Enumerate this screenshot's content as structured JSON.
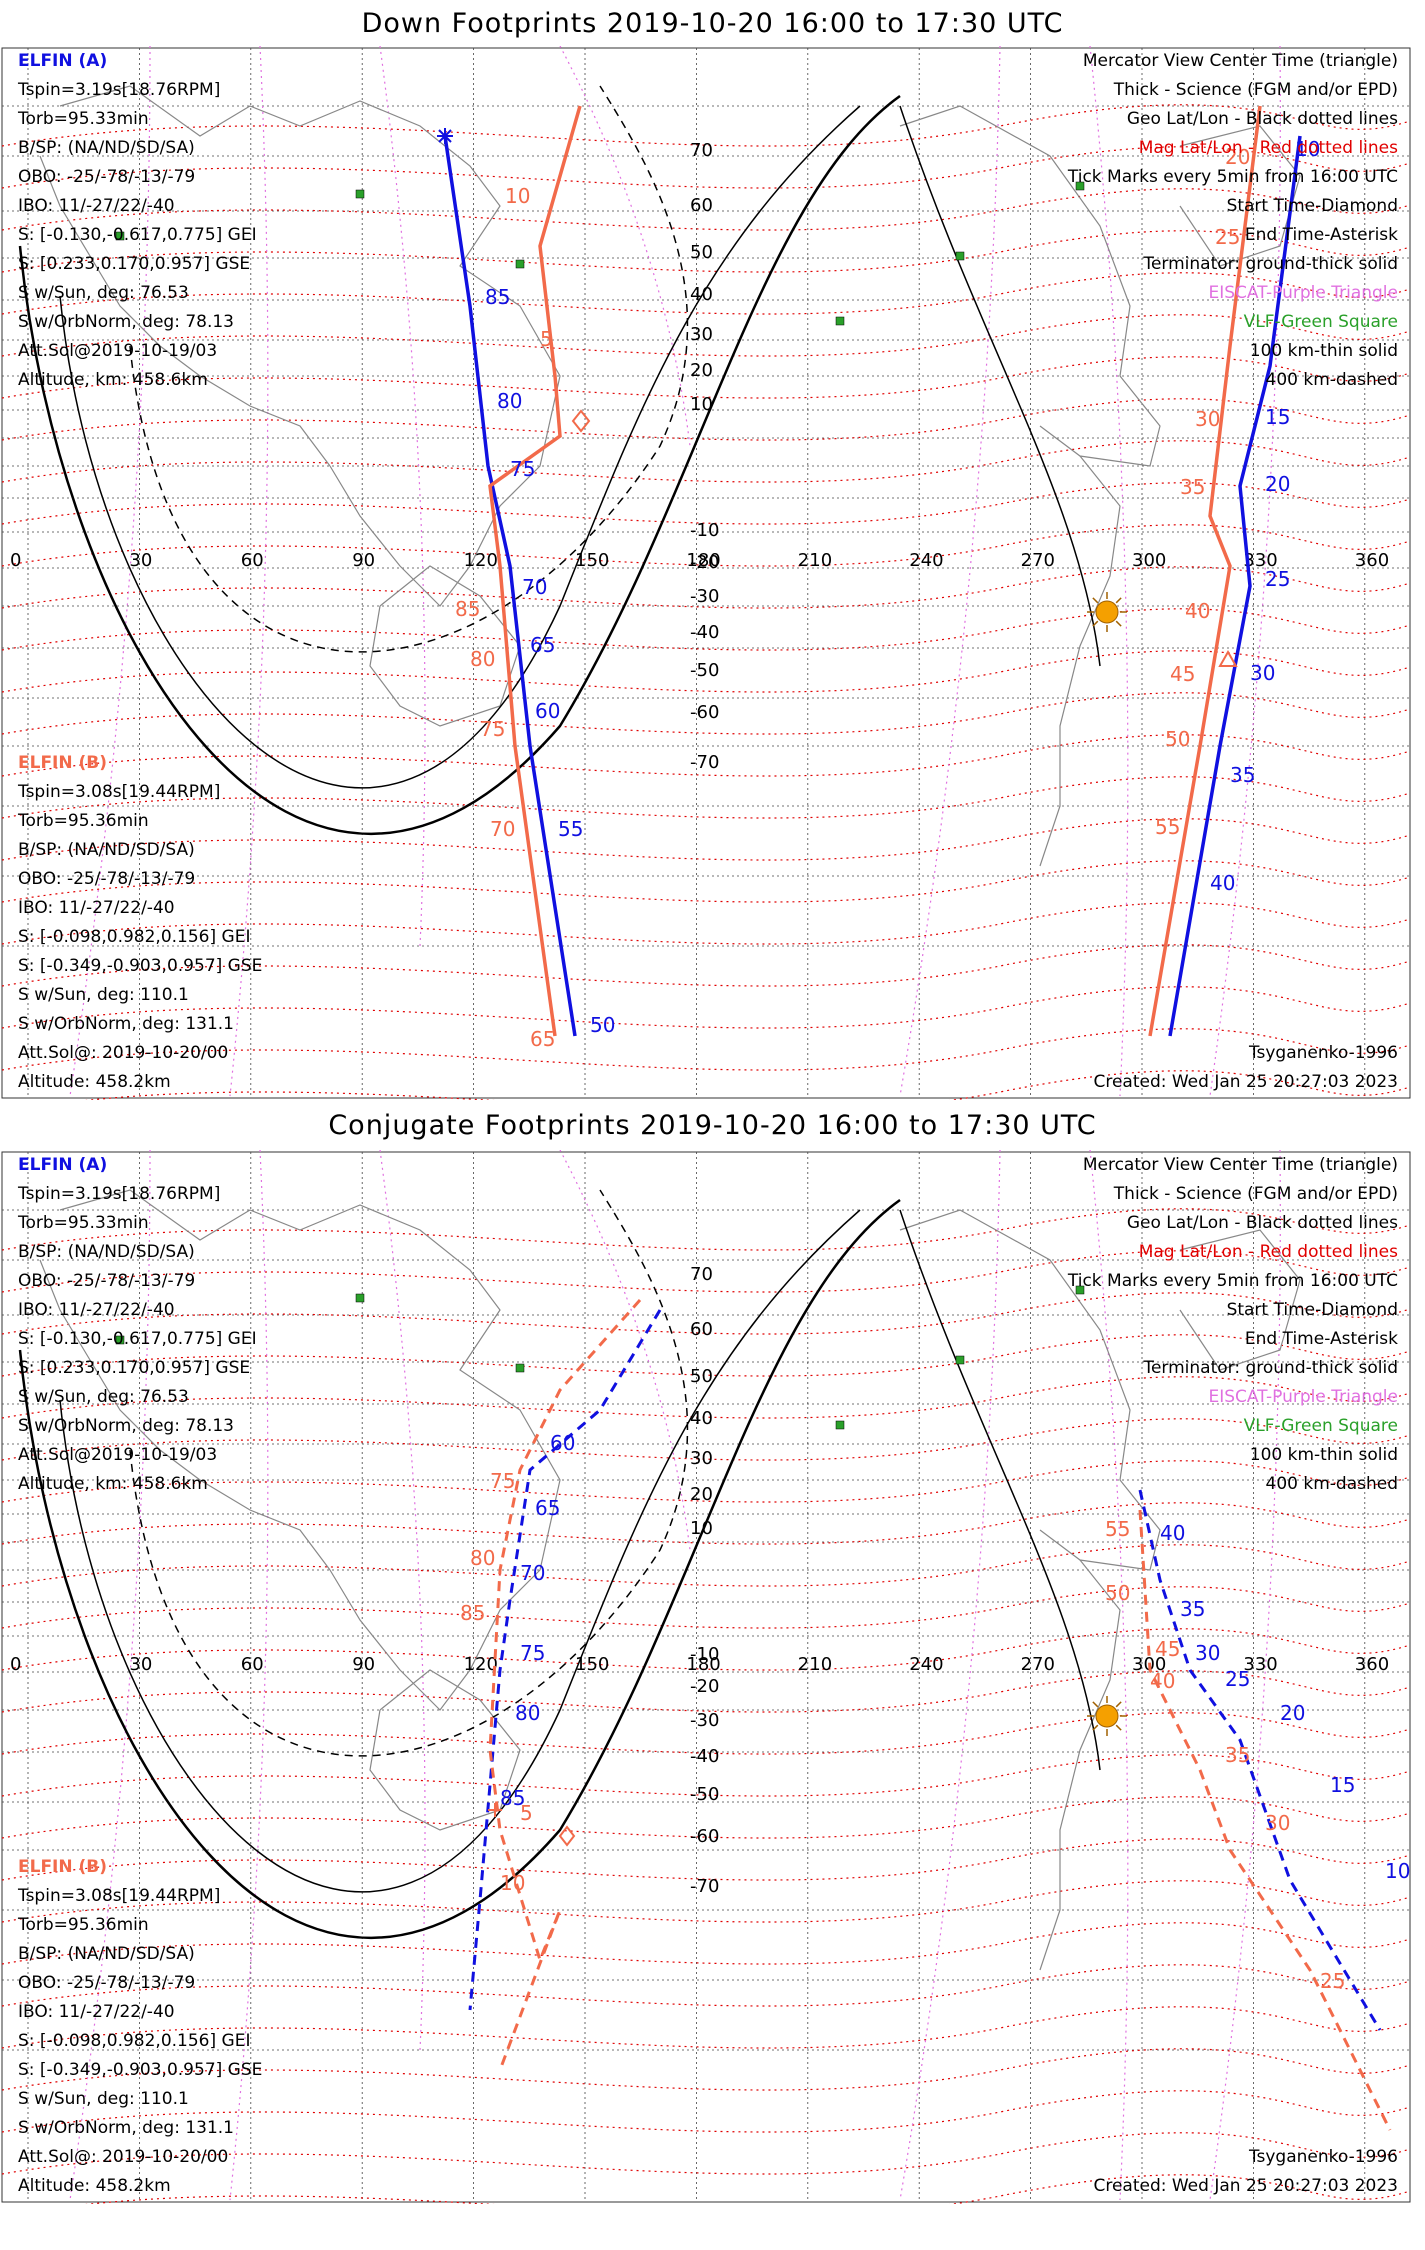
{
  "panels": [
    {
      "title": "Down Footprints 2019-10-20 16:00 to 17:30 UTC",
      "elfin_a": {
        "name": "ELFIN (A)",
        "lines": [
          "Tspin=3.19s[18.76RPM]",
          "Torb=95.33min",
          "B/SP: (NA/ND/SD/SA)",
          "OBO: -25/-78/-13/-79",
          "IBO: 11/-27/22/-40",
          "S: [-0.130,-0.617,0.775] GEI",
          "S: [0.233,0.170,0.957] GSE",
          "S w/Sun, deg: 76.53",
          "S w/OrbNorm, deg: 78.13",
          "Att.Sol@2019-10-19/03",
          "Altitude, km: 458.6km"
        ]
      },
      "elfin_b": {
        "name": "ELFIN (B)",
        "lines": [
          "Tspin=3.08s[19.44RPM]",
          "Torb=95.36min",
          "B/SP: (NA/ND/SD/SA)",
          "OBO: -25/-78/-13/-79",
          "IBO: 11/-27/22/-40",
          "S: [-0.098,0.982,0.156] GEI",
          "S: [-0.349,-0.903,0.957] GSE",
          "S w/Sun, deg: 110.1",
          "S w/OrbNorm, deg: 131.1",
          "Att.Sol@: 2019-10-20/00",
          "Altitude: 458.2km"
        ]
      },
      "legend": [
        "Mercator View Center Time (triangle)",
        "Thick - Science (FGM and/or EPD)",
        "Geo Lat/Lon - Black dotted lines",
        "Mag Lat/Lon - Red dotted lines",
        "Tick Marks every 5min from 16:00 UTC",
        "Start Time-Diamond",
        "End Time-Asterisk",
        "Terminator: ground-thick solid",
        "EISCAT-Purple Triangle",
        "VLF-Green Square",
        "100 km-thin solid",
        "400 km-dashed"
      ],
      "model": "Tsyganenko-1996",
      "created": "Created: Wed Jan 25 20:27:03 2023",
      "track_a_labels": [
        "85",
        "80",
        "75",
        "70",
        "65",
        "60",
        "55",
        "50",
        "10",
        "15",
        "20",
        "25",
        "30",
        "35",
        "40"
      ],
      "track_b_labels": [
        "10",
        "5",
        "85",
        "80",
        "75",
        "70",
        "65",
        "20",
        "25",
        "30",
        "35",
        "40",
        "45",
        "50",
        "55"
      ]
    },
    {
      "title": "Conjugate Footprints 2019-10-20 16:00 to 17:30 UTC",
      "elfin_a": {
        "name": "ELFIN (A)",
        "lines": [
          "Tspin=3.19s[18.76RPM]",
          "Torb=95.33min",
          "B/SP: (NA/ND/SD/SA)",
          "OBO: -25/-78/-13/-79",
          "IBO: 11/-27/22/-40",
          "S: [-0.130,-0.617,0.775] GEI",
          "S: [0.233,0.170,0.957] GSE",
          "S w/Sun, deg: 76.53",
          "S w/OrbNorm, deg: 78.13",
          "Att.Sol@2019-10-19/03",
          "Altitude, km: 458.6km"
        ]
      },
      "elfin_b": {
        "name": "ELFIN (B)",
        "lines": [
          "Tspin=3.08s[19.44RPM]",
          "Torb=95.36min",
          "B/SP: (NA/ND/SD/SA)",
          "OBO: -25/-78/-13/-79",
          "IBO: 11/-27/22/-40",
          "S: [-0.098,0.982,0.156] GEI",
          "S: [-0.349,-0.903,0.957] GSE",
          "S w/Sun, deg: 110.1",
          "S w/OrbNorm, deg: 131.1",
          "Att.Sol@: 2019-10-20/00",
          "Altitude: 458.2km"
        ]
      },
      "legend": [
        "Mercator View Center Time (triangle)",
        "Thick - Science (FGM and/or EPD)",
        "Geo Lat/Lon - Black dotted lines",
        "Mag Lat/Lon - Red dotted lines",
        "Tick Marks every 5min from 16:00 UTC",
        "Start Time-Diamond",
        "End Time-Asterisk",
        "Terminator: ground-thick solid",
        "EISCAT-Purple Triangle",
        "VLF-Green Square",
        "100 km-thin solid",
        "400 km-dashed"
      ],
      "model": "Tsyganenko-1996",
      "created": "Created: Wed Jan 25 20:27:03 2023",
      "track_a_labels": [
        "60",
        "65",
        "70",
        "75",
        "80",
        "85",
        "40",
        "35",
        "30",
        "25",
        "20",
        "15",
        "10"
      ],
      "track_b_labels": [
        "75",
        "80",
        "85",
        "5",
        "10",
        "55",
        "50",
        "45",
        "40",
        "35",
        "30",
        "25"
      ]
    }
  ],
  "lon_ticks": [
    "0",
    "30",
    "60",
    "90",
    "120",
    "150",
    "180",
    "210",
    "240",
    "270",
    "300",
    "330",
    "360"
  ],
  "lat_ticks": [
    "70",
    "60",
    "50",
    "40",
    "30",
    "20",
    "10",
    "-10",
    "-20",
    "-30",
    "-40",
    "-50",
    "-60",
    "-70"
  ],
  "colors": {
    "elfin_a": "#1010e0",
    "elfin_b": "#f26a4a",
    "mag_grid": "#e00000",
    "geo_grid": "#000000",
    "eiscat": "#e070e0",
    "vlf": "#2aa02a",
    "sun": "#f5a000"
  },
  "icons": [
    "sun-icon",
    "start-diamond-icon",
    "end-asterisk-icon",
    "center-triangle-icon",
    "vlf-square-icon"
  ]
}
